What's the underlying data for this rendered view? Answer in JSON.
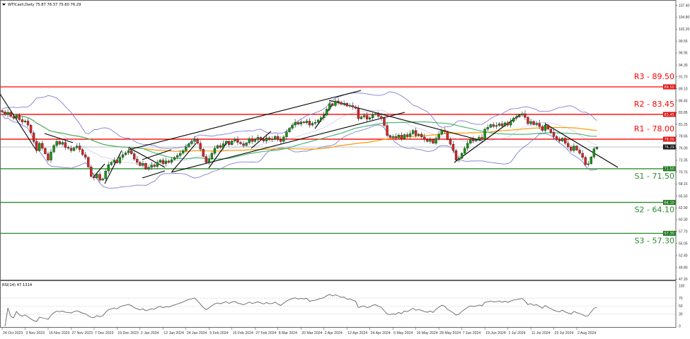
{
  "header": {
    "symbol": "WTICash,Daily",
    "ohlc": "75.87 76.37 75.60 76.29"
  },
  "rsi_header": "RSI(14) 47.1314",
  "chart_data": [
    {
      "type": "candlestick",
      "title": "WTICash,Daily",
      "ylim": [
        47.2,
        107.4
      ],
      "y_ticks": [
        "107.40",
        "104.80",
        "102.20",
        "99.55",
        "96.95",
        "94.30",
        "91.70",
        "89.10",
        "86.45",
        "83.85",
        "81.25",
        "78.65",
        "76.00",
        "73.35",
        "70.75",
        "68.15",
        "65.50",
        "62.90",
        "60.30",
        "57.70",
        "55.05",
        "52.40",
        "49.80",
        "47.20"
      ],
      "x_tick_labels": [
        "24 Oct 2023",
        "3 Nov 2023",
        "15 Nov 2023",
        "27 Nov 2023",
        "7 Dec 2023",
        "19 Dec 2023",
        "2 Jan 2024",
        "12 Jan 2024",
        "24 Jan 2024",
        "5 Feb 2024",
        "15 Feb 2024",
        "27 Feb 2024",
        "8 Mar 2024",
        "20 Mar 2024",
        "2 Apr 2024",
        "12 Apr 2024",
        "24 Apr 2024",
        "6 May 2024",
        "16 May 2024",
        "28 May 2024",
        "7 Jun 2024",
        "19 Jun 2024",
        "1 Jul 2024",
        "11 Jul 2024",
        "23 Jul 2024",
        "2 Aug 2024"
      ],
      "last": {
        "open": 75.87,
        "high": 76.37,
        "low": 75.6,
        "close": 76.29
      },
      "closes": [
        84.0,
        83.4,
        83.9,
        83.0,
        82.6,
        83.2,
        82.3,
        81.8,
        82.0,
        81.1,
        79.4,
        77.5,
        75.5,
        77.1,
        76.0,
        74.8,
        73.4,
        75.2,
        76.6,
        77.5,
        76.9,
        77.3,
        76.2,
        76.0,
        75.5,
        76.1,
        76.5,
        75.7,
        74.6,
        74.0,
        71.9,
        69.8,
        69.5,
        70.3,
        69.0,
        69.3,
        71.0,
        72.4,
        72.9,
        73.4,
        72.8,
        74.0,
        74.6,
        75.0,
        75.5,
        74.8,
        73.6,
        72.9,
        72.2,
        72.7,
        71.4,
        71.8,
        72.3,
        72.0,
        72.9,
        73.4,
        72.6,
        73.2,
        72.9,
        73.5,
        74.0,
        74.4,
        74.9,
        75.5,
        76.3,
        77.0,
        77.5,
        78.0,
        77.1,
        75.8,
        74.2,
        72.9,
        73.7,
        74.9,
        76.0,
        76.6,
        76.2,
        77.0,
        77.5,
        76.8,
        77.6,
        78.0,
        77.3,
        77.0,
        76.6,
        77.2,
        78.1,
        77.5,
        77.9,
        78.4,
        78.0,
        77.6,
        78.3,
        77.9,
        78.0,
        78.6,
        77.9,
        77.5,
        78.5,
        79.6,
        80.4,
        81.1,
        81.7,
        81.3,
        81.8,
        81.6,
        82.0,
        81.1,
        81.5,
        81.7,
        82.2,
        82.7,
        83.3,
        84.6,
        85.8,
        85.4,
        86.4,
        86.1,
        85.7,
        85.9,
        85.3,
        85.4,
        85.1,
        84.8,
        82.5,
        82.9,
        83.2,
        82.4,
        82.7,
        83.4,
        83.6,
        83.0,
        82.6,
        81.0,
        78.8,
        78.4,
        78.6,
        78.3,
        78.9,
        78.1,
        79.0,
        78.6,
        79.2,
        79.9,
        78.8,
        79.1,
        78.5,
        77.9,
        77.5,
        77.9,
        77.1,
        78.2,
        79.1,
        80.0,
        79.6,
        77.9,
        76.9,
        75.5,
        73.4,
        73.8,
        74.9,
        76.0,
        77.1,
        78.0,
        77.6,
        77.9,
        78.4,
        78.0,
        80.2,
        80.6,
        81.2,
        80.8,
        81.0,
        81.4,
        80.9,
        81.6,
        81.1,
        81.9,
        82.6,
        82.9,
        83.3,
        83.6,
        82.8,
        81.4,
        81.9,
        81.2,
        81.5,
        80.8,
        79.9,
        81.1,
        80.2,
        79.5,
        78.6,
        77.9,
        77.6,
        78.2,
        77.1,
        76.3,
        75.5,
        76.5,
        75.6,
        74.9,
        74.0,
        72.4,
        72.6,
        74.1,
        75.87,
        76.29
      ],
      "current_price": "76.29",
      "levels": [
        {
          "name": "R3",
          "label": "R3 - 89.50",
          "value": 89.5,
          "tag": "89.50",
          "color": "#ff0000"
        },
        {
          "name": "R2",
          "label": "R2 - 83.45",
          "value": 83.45,
          "tag": "83.45",
          "color": "#ff0000"
        },
        {
          "name": "R1",
          "label": "R1 - 78.00",
          "value": 78.0,
          "tag": "78.00",
          "color": "#ff0000"
        },
        {
          "name": "S1",
          "label": "S1 - 71.50",
          "value": 71.5,
          "tag": "71.50",
          "color": "#2e8b2e"
        },
        {
          "name": "S2",
          "label": "S2 - 64.10",
          "value": 64.1,
          "tag": "64.10",
          "color": "#2e8b2e"
        },
        {
          "name": "S3",
          "label": "S3 - 57.30",
          "value": 57.3,
          "tag": "57.30",
          "color": "#2e8b2e"
        }
      ],
      "indicators": {
        "bollinger_color": "#8080d0",
        "ma_fast_color": "#3cb371",
        "ma_slow_color": "#ff9900"
      },
      "candle_colors": {
        "up": "#119911",
        "down": "#dd2222"
      }
    },
    {
      "type": "line",
      "title": "RSI(14) 47.1314",
      "ylim": [
        0,
        100
      ],
      "y_ticks": [
        "100",
        "70",
        "50",
        "30",
        "0"
      ],
      "levels": [
        70,
        50,
        30
      ],
      "value": 47.1314
    }
  ]
}
